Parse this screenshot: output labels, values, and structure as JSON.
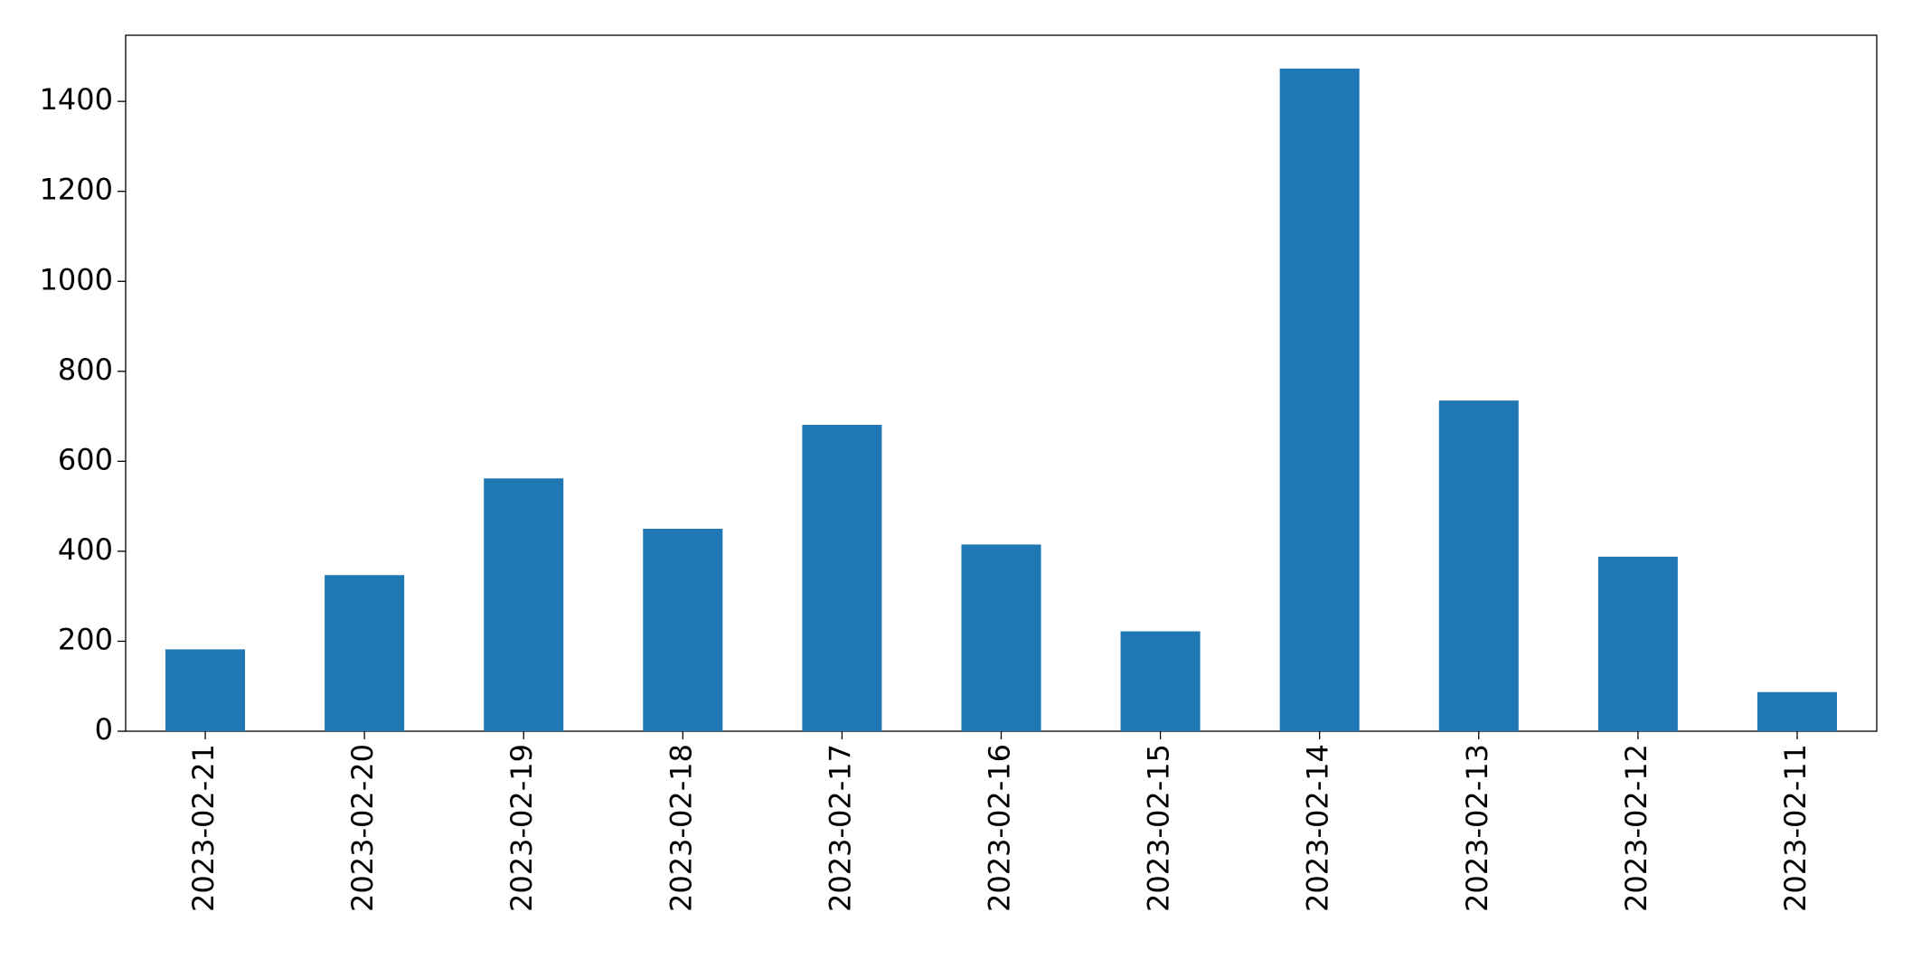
{
  "chart_data": {
    "type": "bar",
    "categories": [
      "2023-02-21",
      "2023-02-20",
      "2023-02-19",
      "2023-02-18",
      "2023-02-17",
      "2023-02-16",
      "2023-02-15",
      "2023-02-14",
      "2023-02-13",
      "2023-02-12",
      "2023-02-11"
    ],
    "values": [
      182,
      347,
      562,
      450,
      681,
      415,
      222,
      1473,
      735,
      388,
      87
    ],
    "color": "#1f77b4",
    "ylim": [
      0,
      1547
    ],
    "yticks": [
      0,
      200,
      400,
      600,
      800,
      1000,
      1200,
      1400
    ],
    "grid": false
  }
}
